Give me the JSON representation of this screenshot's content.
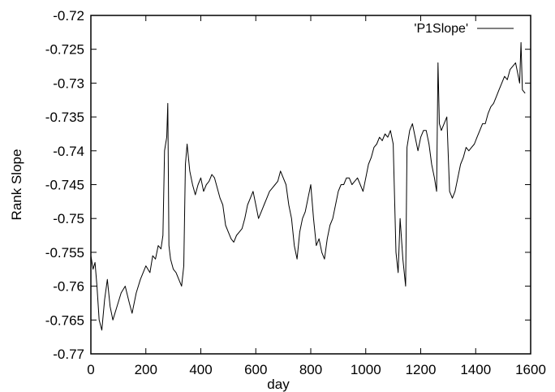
{
  "chart_data": {
    "type": "line",
    "xlabel": "day",
    "ylabel": "Rank Slope",
    "xlim": [
      0,
      1600
    ],
    "ylim": [
      -0.77,
      -0.72
    ],
    "xticks": [
      0,
      200,
      400,
      600,
      800,
      1000,
      1200,
      1400,
      1600
    ],
    "yticks": [
      -0.72,
      -0.725,
      -0.73,
      -0.735,
      -0.74,
      -0.745,
      -0.75,
      -0.755,
      -0.76,
      -0.765,
      -0.77
    ],
    "x_tick_labels": [
      "0",
      "200",
      "400",
      "600",
      "800",
      "1000",
      "1200",
      "1400",
      "1600"
    ],
    "y_tick_labels": [
      "-0.72",
      "-0.725",
      "-0.73",
      "-0.735",
      "-0.74",
      "-0.745",
      "-0.75",
      "-0.755",
      "-0.76",
      "-0.765",
      "-0.77"
    ],
    "grid": false,
    "legend_position": "top-right",
    "series": [
      {
        "name": "'P1Slope'",
        "color": "#000000",
        "points": [
          [
            0,
            -0.7555
          ],
          [
            8,
            -0.7575
          ],
          [
            15,
            -0.7565
          ],
          [
            22,
            -0.76
          ],
          [
            30,
            -0.765
          ],
          [
            40,
            -0.7665
          ],
          [
            50,
            -0.762
          ],
          [
            60,
            -0.759
          ],
          [
            70,
            -0.763
          ],
          [
            80,
            -0.765
          ],
          [
            95,
            -0.763
          ],
          [
            110,
            -0.761
          ],
          [
            125,
            -0.76
          ],
          [
            140,
            -0.7625
          ],
          [
            150,
            -0.764
          ],
          [
            165,
            -0.761
          ],
          [
            180,
            -0.759
          ],
          [
            200,
            -0.757
          ],
          [
            215,
            -0.758
          ],
          [
            225,
            -0.7555
          ],
          [
            235,
            -0.756
          ],
          [
            245,
            -0.754
          ],
          [
            255,
            -0.7545
          ],
          [
            262,
            -0.7525
          ],
          [
            268,
            -0.74
          ],
          [
            272,
            -0.739
          ],
          [
            276,
            -0.738
          ],
          [
            280,
            -0.733
          ],
          [
            284,
            -0.754
          ],
          [
            290,
            -0.756
          ],
          [
            300,
            -0.7575
          ],
          [
            310,
            -0.758
          ],
          [
            320,
            -0.759
          ],
          [
            330,
            -0.76
          ],
          [
            338,
            -0.757
          ],
          [
            344,
            -0.742
          ],
          [
            350,
            -0.739
          ],
          [
            360,
            -0.743
          ],
          [
            370,
            -0.745
          ],
          [
            380,
            -0.7465
          ],
          [
            390,
            -0.745
          ],
          [
            400,
            -0.744
          ],
          [
            410,
            -0.746
          ],
          [
            420,
            -0.745
          ],
          [
            430,
            -0.7445
          ],
          [
            440,
            -0.7435
          ],
          [
            450,
            -0.744
          ],
          [
            460,
            -0.7455
          ],
          [
            470,
            -0.747
          ],
          [
            480,
            -0.748
          ],
          [
            490,
            -0.751
          ],
          [
            500,
            -0.752
          ],
          [
            510,
            -0.753
          ],
          [
            520,
            -0.7535
          ],
          [
            530,
            -0.7525
          ],
          [
            540,
            -0.752
          ],
          [
            550,
            -0.7515
          ],
          [
            560,
            -0.75
          ],
          [
            570,
            -0.748
          ],
          [
            580,
            -0.747
          ],
          [
            590,
            -0.746
          ],
          [
            600,
            -0.748
          ],
          [
            610,
            -0.75
          ],
          [
            620,
            -0.749
          ],
          [
            630,
            -0.748
          ],
          [
            640,
            -0.747
          ],
          [
            650,
            -0.746
          ],
          [
            660,
            -0.7455
          ],
          [
            670,
            -0.745
          ],
          [
            680,
            -0.7445
          ],
          [
            690,
            -0.743
          ],
          [
            700,
            -0.744
          ],
          [
            710,
            -0.745
          ],
          [
            720,
            -0.748
          ],
          [
            730,
            -0.75
          ],
          [
            740,
            -0.754
          ],
          [
            750,
            -0.756
          ],
          [
            760,
            -0.752
          ],
          [
            770,
            -0.75
          ],
          [
            780,
            -0.749
          ],
          [
            790,
            -0.747
          ],
          [
            800,
            -0.745
          ],
          [
            810,
            -0.75
          ],
          [
            820,
            -0.754
          ],
          [
            830,
            -0.753
          ],
          [
            840,
            -0.755
          ],
          [
            850,
            -0.756
          ],
          [
            860,
            -0.753
          ],
          [
            870,
            -0.751
          ],
          [
            880,
            -0.75
          ],
          [
            890,
            -0.748
          ],
          [
            900,
            -0.746
          ],
          [
            910,
            -0.745
          ],
          [
            920,
            -0.745
          ],
          [
            930,
            -0.744
          ],
          [
            940,
            -0.744
          ],
          [
            950,
            -0.745
          ],
          [
            960,
            -0.7445
          ],
          [
            970,
            -0.744
          ],
          [
            980,
            -0.745
          ],
          [
            990,
            -0.746
          ],
          [
            1000,
            -0.744
          ],
          [
            1010,
            -0.742
          ],
          [
            1020,
            -0.741
          ],
          [
            1030,
            -0.7395
          ],
          [
            1040,
            -0.739
          ],
          [
            1050,
            -0.738
          ],
          [
            1060,
            -0.7385
          ],
          [
            1070,
            -0.7375
          ],
          [
            1080,
            -0.738
          ],
          [
            1090,
            -0.737
          ],
          [
            1100,
            -0.739
          ],
          [
            1110,
            -0.755
          ],
          [
            1118,
            -0.758
          ],
          [
            1125,
            -0.75
          ],
          [
            1135,
            -0.756
          ],
          [
            1145,
            -0.76
          ],
          [
            1150,
            -0.7395
          ],
          [
            1160,
            -0.737
          ],
          [
            1170,
            -0.736
          ],
          [
            1180,
            -0.738
          ],
          [
            1190,
            -0.74
          ],
          [
            1200,
            -0.738
          ],
          [
            1210,
            -0.737
          ],
          [
            1220,
            -0.737
          ],
          [
            1230,
            -0.739
          ],
          [
            1240,
            -0.742
          ],
          [
            1250,
            -0.744
          ],
          [
            1258,
            -0.746
          ],
          [
            1263,
            -0.727
          ],
          [
            1268,
            -0.736
          ],
          [
            1275,
            -0.737
          ],
          [
            1285,
            -0.736
          ],
          [
            1295,
            -0.735
          ],
          [
            1305,
            -0.746
          ],
          [
            1315,
            -0.747
          ],
          [
            1325,
            -0.746
          ],
          [
            1335,
            -0.744
          ],
          [
            1345,
            -0.742
          ],
          [
            1355,
            -0.741
          ],
          [
            1365,
            -0.7395
          ],
          [
            1375,
            -0.74
          ],
          [
            1385,
            -0.7395
          ],
          [
            1395,
            -0.739
          ],
          [
            1405,
            -0.738
          ],
          [
            1415,
            -0.737
          ],
          [
            1425,
            -0.736
          ],
          [
            1435,
            -0.736
          ],
          [
            1445,
            -0.7345
          ],
          [
            1455,
            -0.7335
          ],
          [
            1465,
            -0.733
          ],
          [
            1475,
            -0.732
          ],
          [
            1485,
            -0.731
          ],
          [
            1495,
            -0.73
          ],
          [
            1505,
            -0.729
          ],
          [
            1515,
            -0.7295
          ],
          [
            1525,
            -0.728
          ],
          [
            1535,
            -0.7275
          ],
          [
            1545,
            -0.727
          ],
          [
            1550,
            -0.728
          ],
          [
            1555,
            -0.729
          ],
          [
            1560,
            -0.73
          ],
          [
            1565,
            -0.724
          ],
          [
            1570,
            -0.731
          ],
          [
            1580,
            -0.7315
          ]
        ]
      }
    ]
  }
}
